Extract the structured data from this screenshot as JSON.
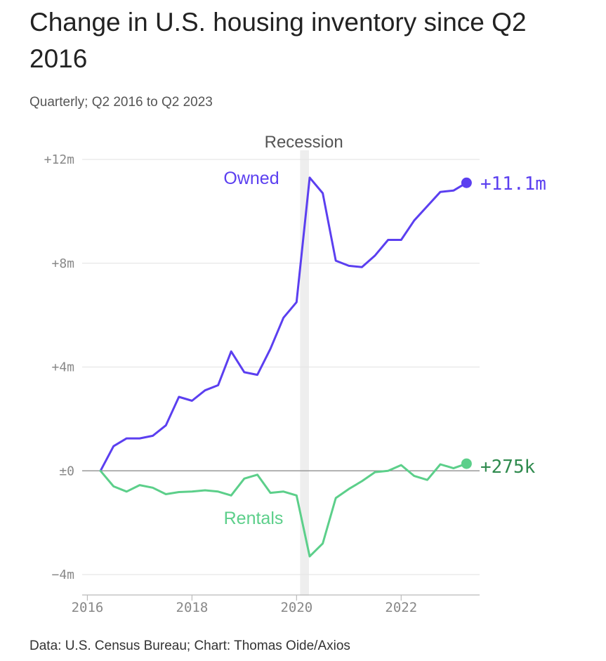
{
  "title": "Change in U.S. housing inventory since Q2 2016",
  "subtitle": "Quarterly; Q2 2016 to Q2 2023",
  "footer": "Data: U.S. Census Bureau; Chart: Thomas Oide/Axios",
  "colors": {
    "owned": "#5b3ff0",
    "rentals": "#5ccf8a",
    "rentals_label_end": "#2f8a4e",
    "recession_band": "#eeeeee",
    "grid": "#e6e6e6",
    "zero_line": "#999999",
    "axis_text": "#888888"
  },
  "chart_data": {
    "type": "line",
    "title": "Change in U.S. housing inventory since Q2 2016",
    "subtitle": "Quarterly; Q2 2016 to Q2 2023",
    "xlabel": "",
    "ylabel": "",
    "xlim": [
      2015.9,
      2023.5
    ],
    "ylim": [
      -4,
      12
    ],
    "y_unit": "millions",
    "grid": "horizontal",
    "x_ticks": [
      {
        "value": 2016,
        "label": "2016"
      },
      {
        "value": 2018,
        "label": "2018"
      },
      {
        "value": 2020,
        "label": "2020"
      },
      {
        "value": 2022,
        "label": "2022"
      }
    ],
    "y_ticks": [
      {
        "value": 12,
        "label": "+12m"
      },
      {
        "value": 8,
        "label": "+8m"
      },
      {
        "value": 4,
        "label": "+4m"
      },
      {
        "value": 0,
        "label": "±0"
      },
      {
        "value": -4,
        "label": "−4m"
      }
    ],
    "recession": {
      "start": 2020.0,
      "end": 2020.25,
      "label": "Recession"
    },
    "x": [
      2016.25,
      2016.5,
      2016.75,
      2017.0,
      2017.25,
      2017.5,
      2017.75,
      2018.0,
      2018.25,
      2018.5,
      2018.75,
      2019.0,
      2019.25,
      2019.5,
      2019.75,
      2020.0,
      2020.25,
      2020.5,
      2020.75,
      2021.0,
      2021.25,
      2021.5,
      2021.75,
      2022.0,
      2022.25,
      2022.5,
      2022.75,
      2023.0,
      2023.25
    ],
    "series": [
      {
        "name": "Owned",
        "end_label": "+11.1m",
        "values": [
          0,
          0.95,
          1.25,
          1.25,
          1.35,
          1.75,
          2.85,
          2.7,
          3.1,
          3.3,
          4.6,
          3.8,
          3.7,
          4.7,
          5.9,
          6.5,
          11.3,
          10.7,
          8.1,
          7.9,
          7.85,
          8.3,
          8.9,
          8.9,
          9.65,
          10.2,
          10.75,
          10.8,
          11.1
        ]
      },
      {
        "name": "Rentals",
        "end_label": "+275k",
        "values": [
          0,
          -0.6,
          -0.8,
          -0.55,
          -0.65,
          -0.9,
          -0.82,
          -0.8,
          -0.75,
          -0.8,
          -0.95,
          -0.3,
          -0.15,
          -0.85,
          -0.8,
          -0.95,
          -3.3,
          -2.8,
          -1.05,
          -0.7,
          -0.4,
          -0.05,
          0,
          0.22,
          -0.2,
          -0.35,
          0.25,
          0.1,
          0.275
        ]
      }
    ]
  }
}
